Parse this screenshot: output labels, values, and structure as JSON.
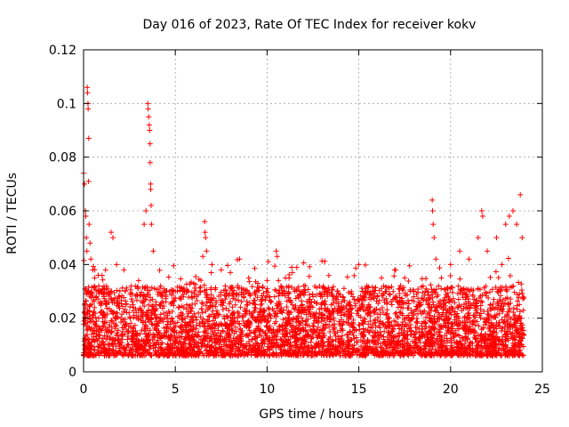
{
  "chart_data": {
    "type": "scatter",
    "title": "Day 016 of 2023, Rate Of TEC Index for receiver kokv",
    "xlabel": "GPS time / hours",
    "ylabel": "ROTI / TECUs",
    "xlim": [
      0,
      25
    ],
    "ylim": [
      0,
      0.12
    ],
    "grid": true,
    "marker": "+",
    "marker_color": "#ff0000",
    "x_ticks": [
      0,
      5,
      10,
      15,
      20,
      25
    ],
    "x_tick_labels": [
      "0",
      "5",
      "10",
      "15",
      "20",
      "25"
    ],
    "y_ticks": [
      0,
      0.02,
      0.04,
      0.06,
      0.08,
      0.1,
      0.12
    ],
    "y_tick_labels": [
      "0",
      "0.02",
      "0.04",
      "0.06",
      "0.08",
      "0.1",
      "0.12"
    ],
    "series": [
      {
        "name": "ROTI",
        "points": [
          [
            0.0,
            0.074
          ],
          [
            0.05,
            0.07
          ],
          [
            0.1,
            0.06
          ],
          [
            0.12,
            0.058
          ],
          [
            0.15,
            0.05
          ],
          [
            0.18,
            0.045
          ],
          [
            0.2,
            0.106
          ],
          [
            0.22,
            0.104
          ],
          [
            0.24,
            0.1
          ],
          [
            0.25,
            0.098
          ],
          [
            0.27,
            0.071
          ],
          [
            0.28,
            0.087
          ],
          [
            0.3,
            0.055
          ],
          [
            0.35,
            0.048
          ],
          [
            0.4,
            0.042
          ],
          [
            0.5,
            0.038
          ],
          [
            0.6,
            0.035
          ],
          [
            0.8,
            0.036
          ],
          [
            1.0,
            0.03
          ],
          [
            1.2,
            0.038
          ],
          [
            1.5,
            0.052
          ],
          [
            1.6,
            0.05
          ],
          [
            1.8,
            0.04
          ],
          [
            2.2,
            0.038
          ],
          [
            2.6,
            0.032
          ],
          [
            3.0,
            0.034
          ],
          [
            3.3,
            0.055
          ],
          [
            3.4,
            0.06
          ],
          [
            3.5,
            0.1
          ],
          [
            3.52,
            0.098
          ],
          [
            3.55,
            0.095
          ],
          [
            3.58,
            0.092
          ],
          [
            3.6,
            0.09
          ],
          [
            3.62,
            0.085
          ],
          [
            3.63,
            0.078
          ],
          [
            3.65,
            0.07
          ],
          [
            3.66,
            0.068
          ],
          [
            3.68,
            0.062
          ],
          [
            3.7,
            0.055
          ],
          [
            3.8,
            0.045
          ],
          [
            4.2,
            0.032
          ],
          [
            5.0,
            0.03
          ],
          [
            5.5,
            0.03
          ],
          [
            6.0,
            0.033
          ],
          [
            6.5,
            0.043
          ],
          [
            6.6,
            0.056
          ],
          [
            6.62,
            0.052
          ],
          [
            6.65,
            0.05
          ],
          [
            6.7,
            0.045
          ],
          [
            7.0,
            0.04
          ],
          [
            7.5,
            0.038
          ],
          [
            8.0,
            0.037
          ],
          [
            8.5,
            0.042
          ],
          [
            9.0,
            0.035
          ],
          [
            9.5,
            0.033
          ],
          [
            10.0,
            0.034
          ],
          [
            10.5,
            0.045
          ],
          [
            10.55,
            0.043
          ],
          [
            11.0,
            0.035
          ],
          [
            11.5,
            0.03
          ],
          [
            12.0,
            0.032
          ],
          [
            12.5,
            0.028
          ],
          [
            13.0,
            0.028
          ],
          [
            13.5,
            0.025
          ],
          [
            14.0,
            0.024
          ],
          [
            14.5,
            0.025
          ],
          [
            15.0,
            0.04
          ],
          [
            15.2,
            0.03
          ],
          [
            15.5,
            0.024
          ],
          [
            16.0,
            0.028
          ],
          [
            16.5,
            0.03
          ],
          [
            17.0,
            0.038
          ],
          [
            17.5,
            0.035
          ],
          [
            18.0,
            0.03
          ],
          [
            18.5,
            0.032
          ],
          [
            19.0,
            0.064
          ],
          [
            19.02,
            0.06
          ],
          [
            19.05,
            0.055
          ],
          [
            19.1,
            0.05
          ],
          [
            19.2,
            0.042
          ],
          [
            19.5,
            0.035
          ],
          [
            20.0,
            0.04
          ],
          [
            20.5,
            0.045
          ],
          [
            21.0,
            0.042
          ],
          [
            21.5,
            0.05
          ],
          [
            21.7,
            0.06
          ],
          [
            21.75,
            0.058
          ],
          [
            22.0,
            0.045
          ],
          [
            22.5,
            0.05
          ],
          [
            22.8,
            0.04
          ],
          [
            23.0,
            0.055
          ],
          [
            23.2,
            0.058
          ],
          [
            23.4,
            0.06
          ],
          [
            23.6,
            0.055
          ],
          [
            23.8,
            0.066
          ],
          [
            23.9,
            0.05
          ]
        ],
        "background_band": "dense cloud of points between 0.005 and 0.03 ROTI across 0–24 hours"
      }
    ]
  }
}
